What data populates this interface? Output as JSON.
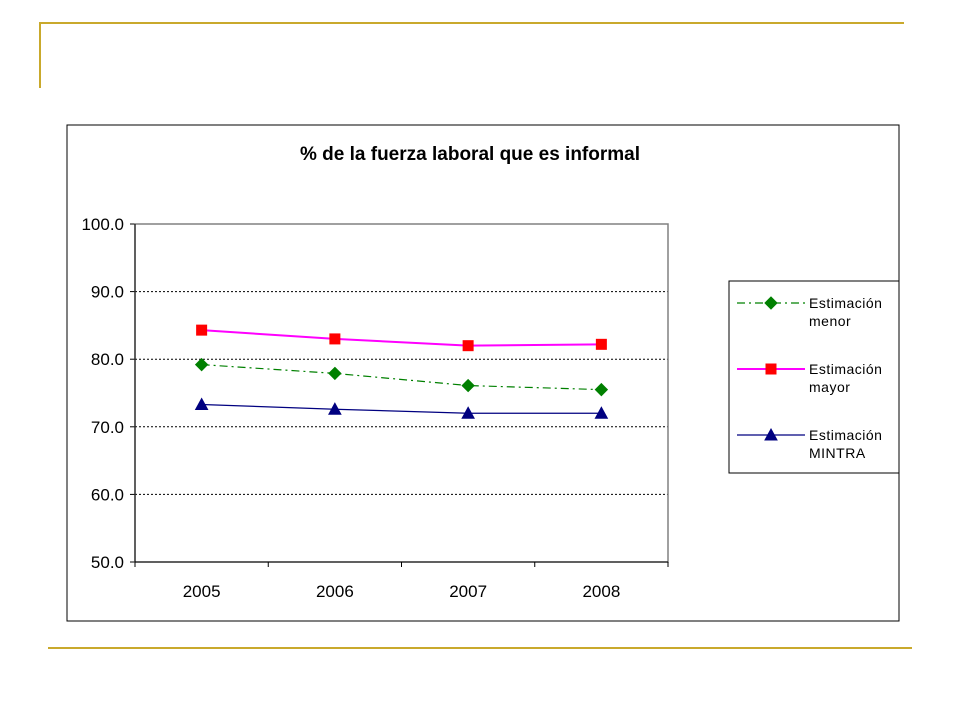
{
  "chart_data": {
    "type": "line",
    "title": "% de la fuerza laboral que es informal",
    "categories": [
      "2005",
      "2006",
      "2007",
      "2008"
    ],
    "ylim": [
      50,
      100
    ],
    "yticks": [
      "100.0",
      "90.0",
      "80.0",
      "70.0",
      "60.0",
      "50.0"
    ],
    "grid": true,
    "legend_position": "right",
    "series": [
      {
        "name_line1": "Estimación",
        "name_line2": "menor",
        "values": [
          79.2,
          77.9,
          76.1,
          75.5
        ],
        "color": "#008000",
        "marker": "diamond",
        "dash": "dash-dot"
      },
      {
        "name_line1": "Estimación",
        "name_line2": "mayor",
        "values": [
          84.3,
          83.0,
          82.0,
          82.2
        ],
        "color": "#ff00ff",
        "marker": "square",
        "marker_color": "#ff0000",
        "dash": "solid"
      },
      {
        "name_line1": "Estimación",
        "name_line2": "MINTRA",
        "values": [
          73.3,
          72.6,
          72.0,
          72.0
        ],
        "color": "#000080",
        "marker": "triangle",
        "dash": "solid"
      }
    ]
  }
}
